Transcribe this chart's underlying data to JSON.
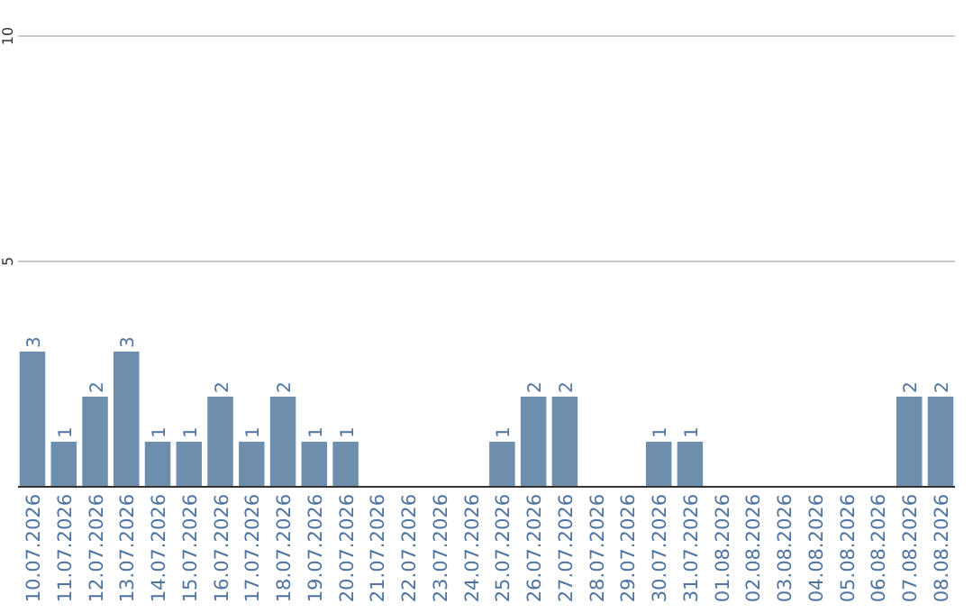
{
  "chart_data": {
    "type": "bar",
    "categories": [
      "10.07.2026",
      "11.07.2026",
      "12.07.2026",
      "13.07.2026",
      "14.07.2026",
      "15.07.2026",
      "16.07.2026",
      "17.07.2026",
      "18.07.2026",
      "19.07.2026",
      "20.07.2026",
      "21.07.2026",
      "22.07.2026",
      "23.07.2026",
      "24.07.2026",
      "25.07.2026",
      "26.07.2026",
      "27.07.2026",
      "28.07.2026",
      "29.07.2026",
      "30.07.2026",
      "31.07.2026",
      "01.08.2026",
      "02.08.2026",
      "03.08.2026",
      "04.08.2026",
      "05.08.2026",
      "06.08.2026",
      "07.08.2026",
      "08.08.2026"
    ],
    "values": [
      3,
      1,
      2,
      3,
      1,
      1,
      2,
      1,
      2,
      1,
      1,
      0,
      0,
      0,
      0,
      1,
      2,
      2,
      0,
      0,
      1,
      1,
      0,
      0,
      0,
      0,
      0,
      0,
      2,
      2
    ],
    "value_labels": [
      "3",
      "1",
      "2",
      "3",
      "1",
      "1",
      "2",
      "1",
      "2",
      "1",
      "1",
      null,
      null,
      null,
      null,
      "1",
      "2",
      "2",
      null,
      null,
      "1",
      "1",
      null,
      null,
      null,
      null,
      null,
      null,
      "2",
      "2"
    ],
    "color": "#6e8eae",
    "ylim": [
      0,
      10
    ],
    "yticks": [
      {
        "value": 0,
        "label": null
      },
      5,
      10
    ],
    "grid": "y"
  }
}
